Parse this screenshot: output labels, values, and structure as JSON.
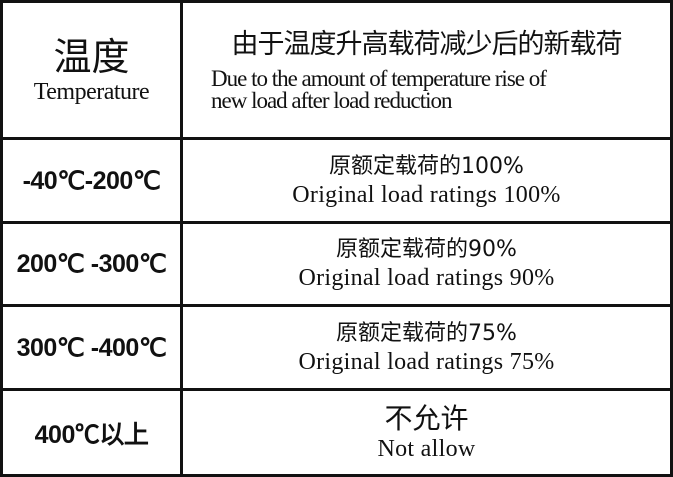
{
  "header": {
    "temperature_zh": "温度",
    "temperature_en": "Temperature",
    "load_zh": "由于温度升高载荷减少后的新载荷",
    "load_en_line1": "Due to the amount of temperature rise of",
    "load_en_line2": "new load after load reduction"
  },
  "rows": [
    {
      "temperature": "-40℃-200℃",
      "load_zh": "原额定载荷的100%",
      "load_en": "Original load ratings 100%"
    },
    {
      "temperature": "200℃ -300℃",
      "load_zh": "原额定载荷的90%",
      "load_en": "Original load ratings 90%"
    },
    {
      "temperature": "300℃ -400℃",
      "load_zh": "原额定载荷的75%",
      "load_en": "Original load ratings 75%"
    },
    {
      "temperature": "400℃以上",
      "load_zh": "不允许",
      "load_en": "Not allow"
    }
  ]
}
